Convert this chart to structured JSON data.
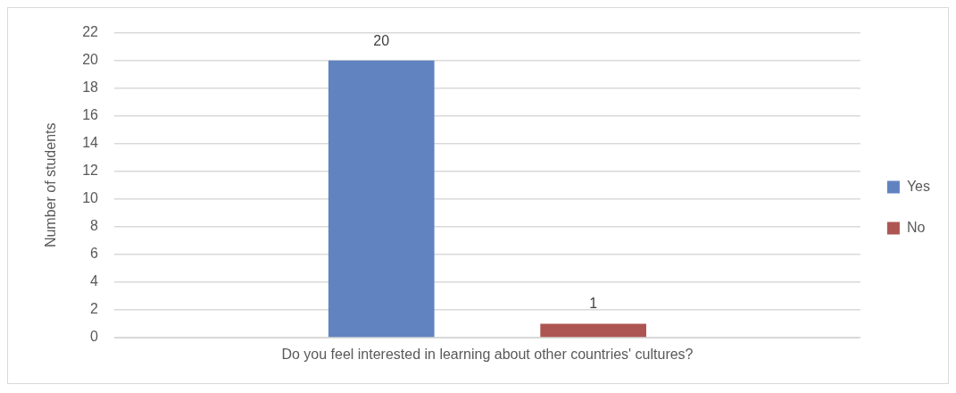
{
  "chart_data": {
    "type": "bar",
    "categories": [
      "Do you feel interested in learning about other countries' cultures?"
    ],
    "series": [
      {
        "name": "Yes",
        "color": "#6183c0",
        "values": [
          20
        ]
      },
      {
        "name": "No",
        "color": "#ad5552",
        "values": [
          1
        ]
      }
    ],
    "ylabel": "Number of students",
    "ylim": [
      0,
      22
    ],
    "yticks": [
      0,
      2,
      4,
      6,
      8,
      10,
      12,
      14,
      16,
      18,
      20,
      22
    ],
    "grid": "y",
    "legend": "right",
    "data_labels": true
  }
}
